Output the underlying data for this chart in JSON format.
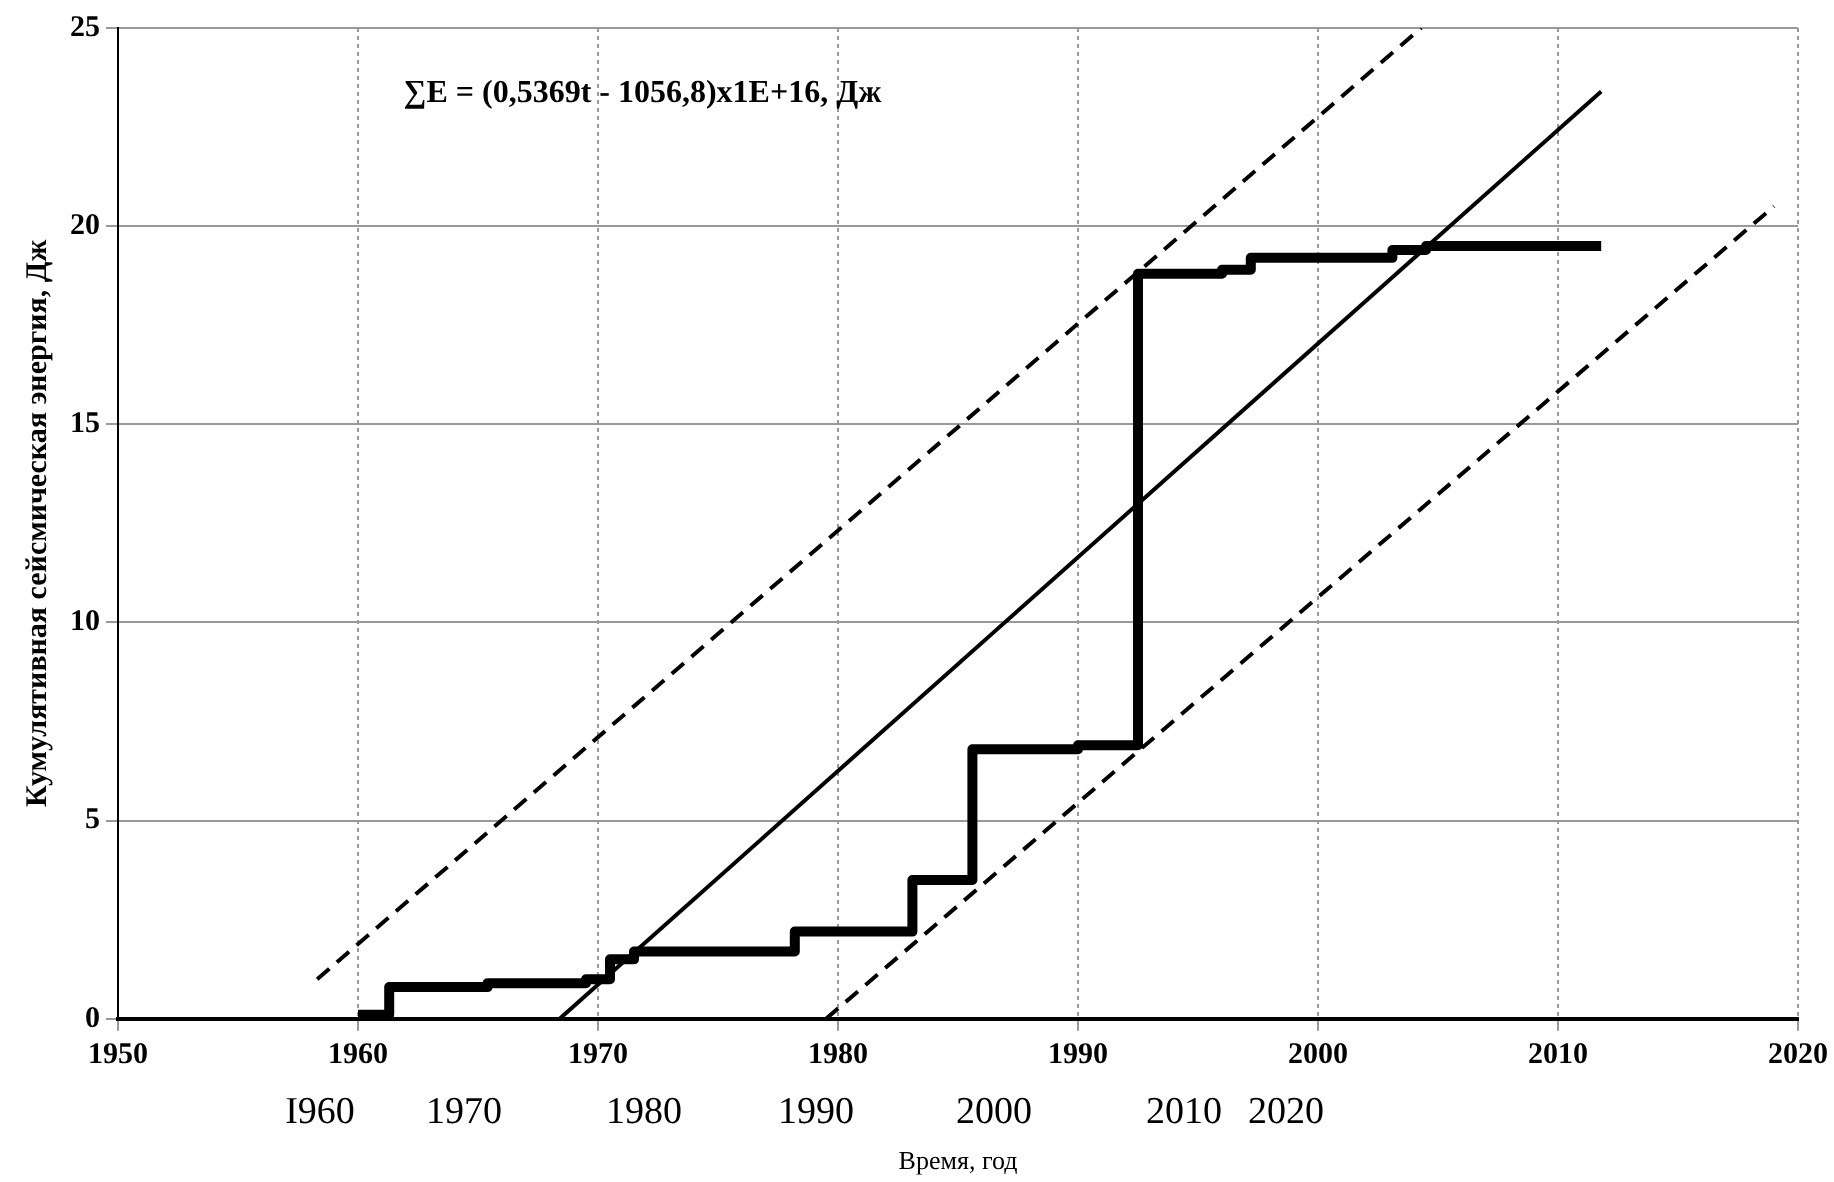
{
  "chart_data": {
    "type": "step",
    "xlabel": "Время, год",
    "ylabel": "Кумулятивная сейсмическая энергия, Дж",
    "xlim": [
      1950,
      2020
    ],
    "xticks": [
      1950,
      1960,
      1970,
      1980,
      1990,
      2000,
      2010,
      2020
    ],
    "ylim": [
      0,
      25
    ],
    "yticks": [
      0,
      5,
      10,
      15,
      20,
      25
    ],
    "grid": true,
    "marker": "none",
    "annotations": [
      "∑E = (0,5369t - 1056,8)x1E+16, Дж",
      "I960",
      "1970",
      "1980",
      "1990",
      "2000",
      "2010",
      "2020"
    ],
    "series": [
      {
        "type": "step",
        "color": "#000000",
        "x": [
          1960,
          1961.3,
          1965.4,
          1969.5,
          1970.5,
          1971.5,
          1978.2,
          1983.1,
          1985.6,
          1990,
          1992.5,
          1996,
          1997.2,
          2003.1,
          2004.5,
          2011.8
        ],
        "values": [
          0.1,
          0.8,
          0.9,
          1.0,
          1.5,
          1.7,
          2.2,
          3.5,
          6.8,
          6.9,
          18.8,
          18.9,
          19.2,
          19.4,
          19.5,
          19.5
        ]
      },
      {
        "type": "line",
        "color": "#000000",
        "line_style": "solid",
        "x": [
          1968.4,
          2011.8
        ],
        "values": [
          0,
          23.4
        ]
      },
      {
        "type": "line",
        "color": "#000000",
        "line_style": "dashed",
        "x": [
          1958.3,
          2004.3
        ],
        "values": [
          1.0,
          25.0
        ]
      },
      {
        "type": "line",
        "color": "#000000",
        "line_style": "dashed",
        "x": [
          1979.5,
          2019.0
        ],
        "values": [
          0,
          20.5
        ]
      }
    ]
  }
}
